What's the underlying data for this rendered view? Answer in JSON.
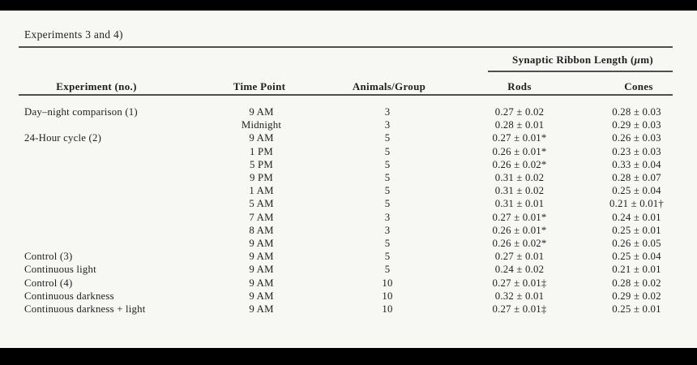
{
  "caption": "Experiments 3 and 4)",
  "colors": {
    "background": "#f7f7f4",
    "text": "#1e1e1e",
    "rule": "#4f4f4f",
    "bars": "#000000"
  },
  "table": {
    "spanner_prefix": "Synaptic Ribbon Length (",
    "spanner_mu": "μ",
    "spanner_suffix": "m)",
    "columns": [
      "Experiment (no.)",
      "Time Point",
      "Animals/Group",
      "Rods",
      "Cones"
    ],
    "rows": [
      [
        "Day–night comparison (1)",
        "9 AM",
        "3",
        "0.27 ± 0.02",
        "0.28 ± 0.03"
      ],
      [
        "",
        "Midnight",
        "3",
        "0.28 ± 0.01",
        "0.29 ± 0.03"
      ],
      [
        "24-Hour cycle (2)",
        "9 AM",
        "5",
        "0.27 ± 0.01*",
        "0.26 ± 0.03"
      ],
      [
        "",
        "1 PM",
        "5",
        "0.26 ± 0.01*",
        "0.23 ± 0.03"
      ],
      [
        "",
        "5 PM",
        "5",
        "0.26 ± 0.02*",
        "0.33 ± 0.04"
      ],
      [
        "",
        "9 PM",
        "5",
        "0.31 ± 0.02",
        "0.28 ± 0.07"
      ],
      [
        "",
        "1 AM",
        "5",
        "0.31 ± 0.02",
        "0.25 ± 0.04"
      ],
      [
        "",
        "5 AM",
        "5",
        "0.31 ± 0.01",
        "0.21 ± 0.01†"
      ],
      [
        "",
        "7 AM",
        "3",
        "0.27 ± 0.01*",
        "0.24 ± 0.01"
      ],
      [
        "",
        "8 AM",
        "3",
        "0.26 ± 0.01*",
        "0.25 ± 0.01"
      ],
      [
        "",
        "9 AM",
        "5",
        "0.26 ± 0.02*",
        "0.26 ± 0.05"
      ],
      [
        "Control (3)",
        "9 AM",
        "5",
        "0.27 ± 0.01",
        "0.25 ± 0.04"
      ],
      [
        "Continuous light",
        "9 AM",
        "5",
        "0.24 ± 0.02",
        "0.21 ± 0.01"
      ],
      [
        "Control (4)",
        "9 AM",
        "10",
        "0.27 ± 0.01‡",
        "0.28 ± 0.02"
      ],
      [
        "Continuous darkness",
        "9 AM",
        "10",
        "0.32 ± 0.01",
        "0.29 ± 0.02"
      ],
      [
        "Continuous darkness + light",
        "9 AM",
        "10",
        "0.27 ± 0.01‡",
        "0.25 ± 0.01"
      ]
    ]
  }
}
